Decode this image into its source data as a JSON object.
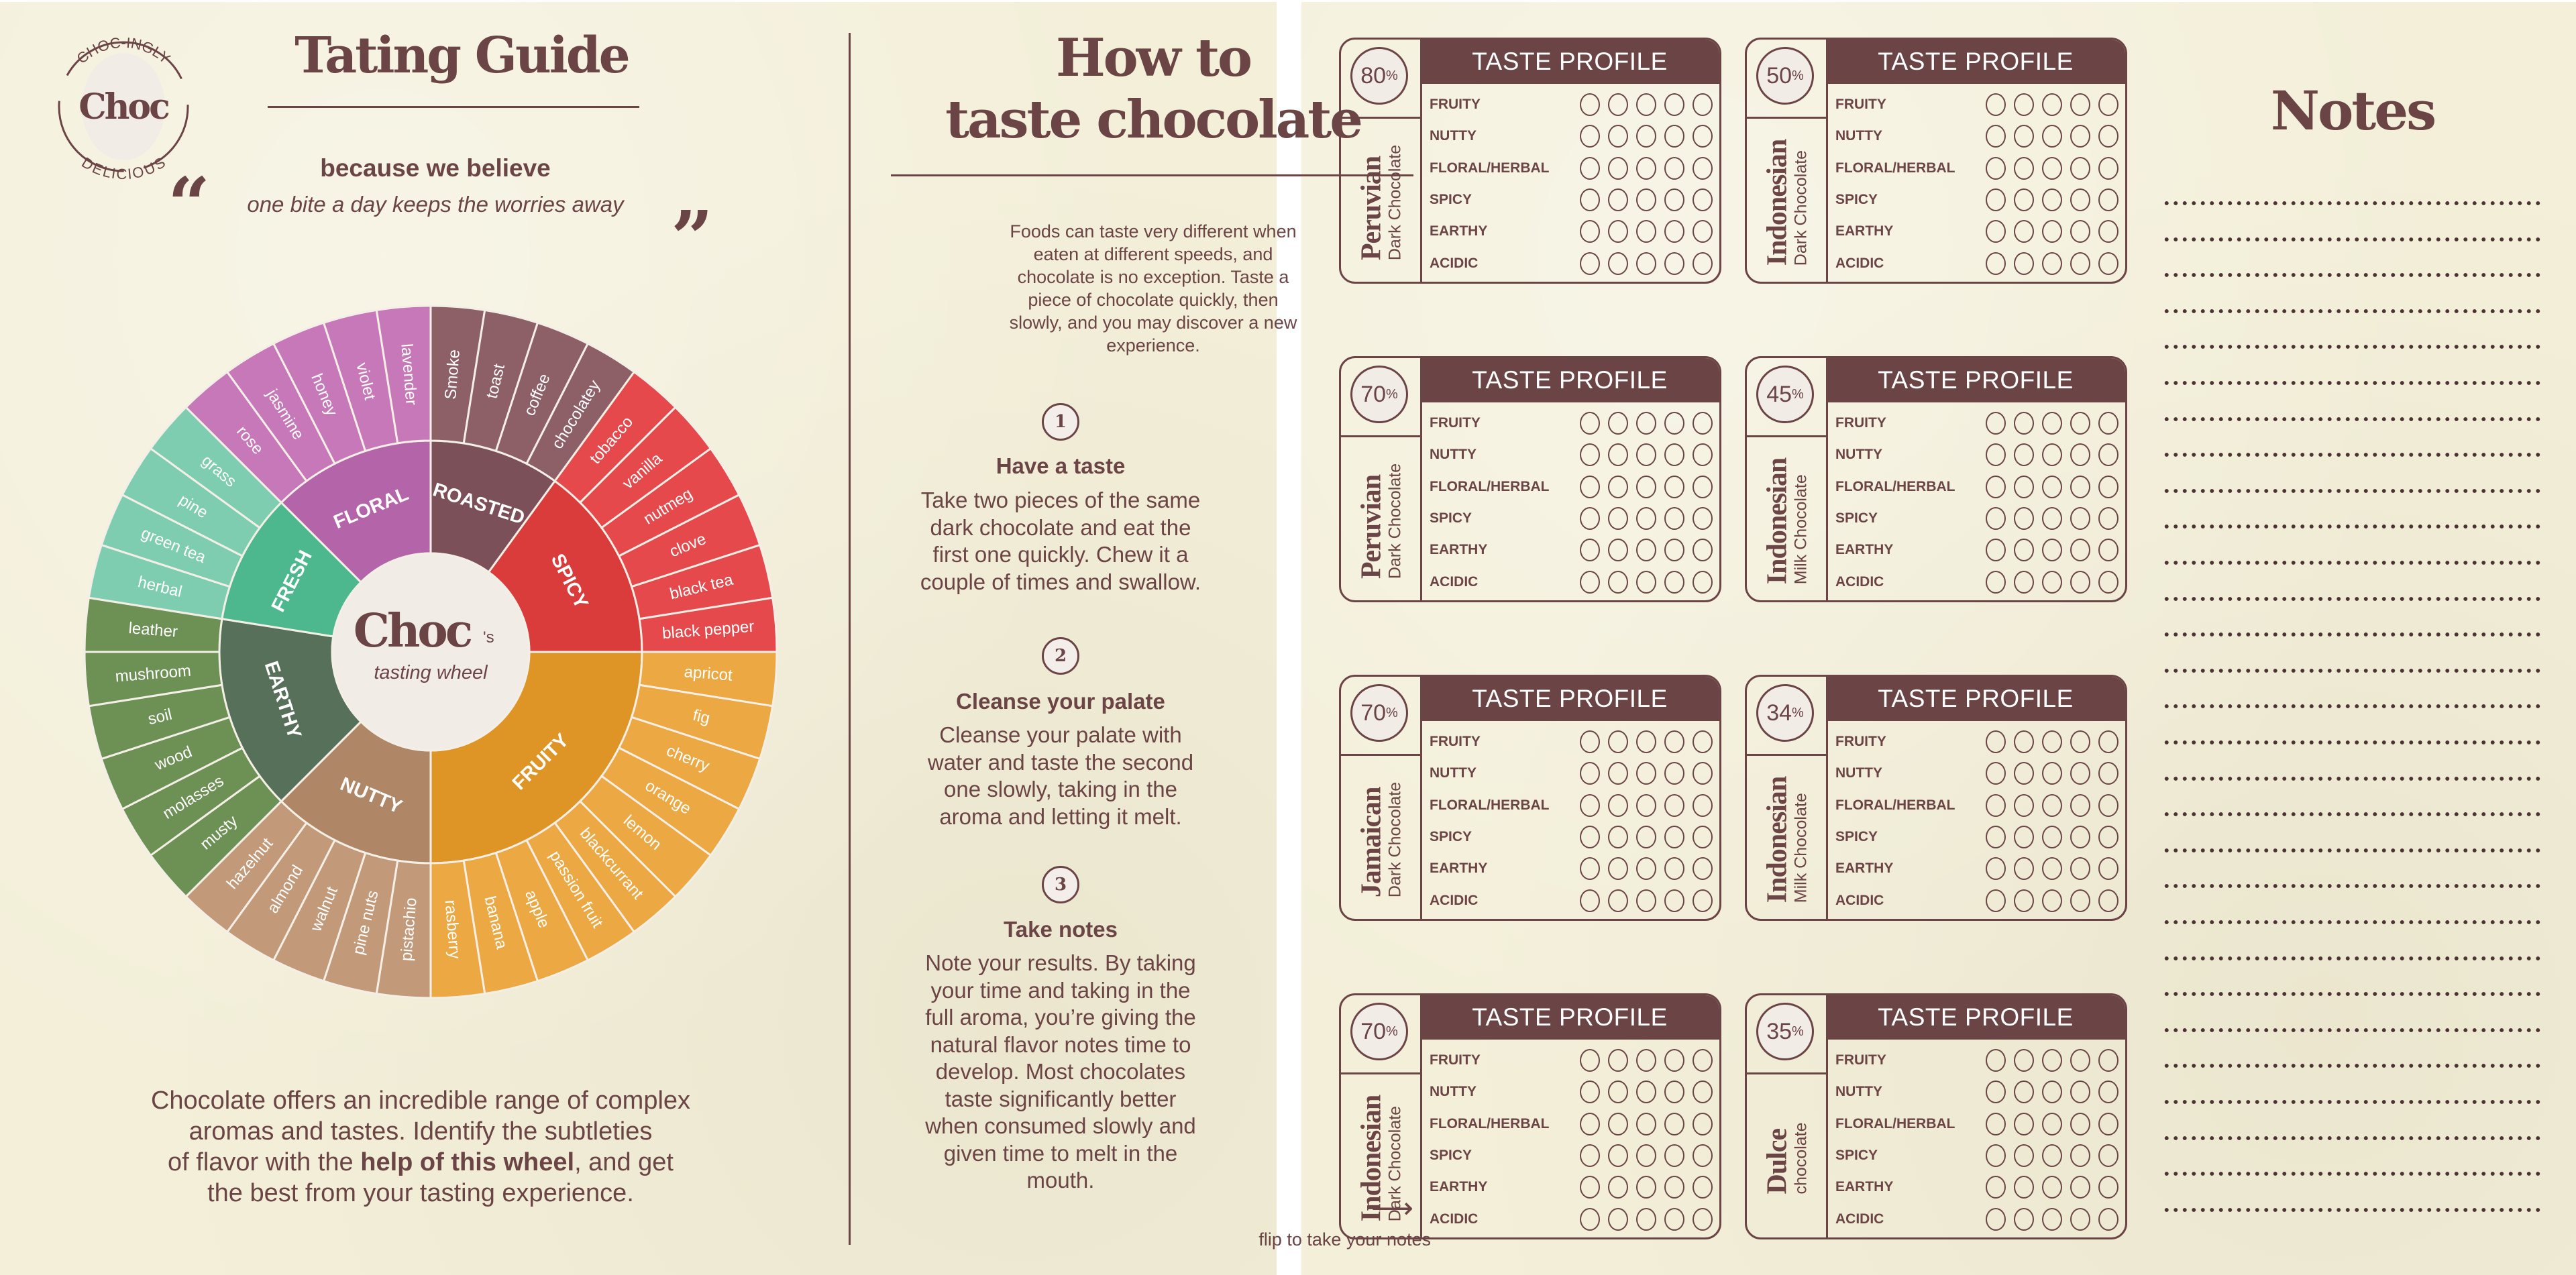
{
  "logo": {
    "wordmark": "Choc",
    "ring_top": "CHOC-INGLY",
    "ring_bottom": "DELICIOUS"
  },
  "guide": {
    "title": "Tating Guide",
    "tagline": "because we believe",
    "quote": "one bite a day keeps the worries away",
    "open_quote": "“",
    "close_quote": "”",
    "description_lines": [
      [
        "Chocolate offers an incredible range of complex",
        "",
        ""
      ],
      [
        "aromas and tastes. Identify the subtleties",
        "",
        ""
      ],
      [
        "of flavor with the ",
        "help of this wheel",
        ", and get"
      ],
      [
        "the best from your tasting experience.",
        "",
        ""
      ]
    ]
  },
  "wheel": {
    "center_brand": "Choc",
    "center_suffix": "'s",
    "center_subtitle": "tasting wheel",
    "center_color": "#f2ece7",
    "categories": [
      {
        "name": "ROASTED",
        "inner_color": "#7b5058",
        "outer_color": "#8d5f67",
        "leaves": [
          "Smoke",
          "toast",
          "coffee",
          "chocolatey"
        ]
      },
      {
        "name": "SPICY",
        "inner_color": "#d93c3b",
        "outer_color": "#e6494b",
        "leaves": [
          "tobacco",
          "vanilla",
          "nutmeg",
          "clove",
          "black tea",
          "black pepper"
        ]
      },
      {
        "name": "FRUITY",
        "inner_color": "#de9526",
        "outer_color": "#eca843",
        "leaves": [
          "apricot",
          "fig",
          "cherry",
          "orange",
          "lemon",
          "blackcurrant",
          "passion fruit",
          "apple",
          "banana",
          "rasberry"
        ]
      },
      {
        "name": "NUTTY",
        "inner_color": "#b08766",
        "outer_color": "#c29a7a",
        "leaves": [
          "pistachio",
          "pine nuts",
          "walnut",
          "almond",
          "hazelnut"
        ]
      },
      {
        "name": "EARTHY",
        "inner_color": "#57705a",
        "outer_color": "#6d9055",
        "leaves": [
          "musty",
          "molasses",
          "wood",
          "soil",
          "mushroom",
          "leather"
        ]
      },
      {
        "name": "FRESH",
        "inner_color": "#4db78e",
        "outer_color": "#7fcdb1",
        "leaves": [
          "herbal",
          "green tea",
          "pine",
          "grass"
        ]
      },
      {
        "name": "FLORAL",
        "inner_color": "#b464a8",
        "outer_color": "#c678b8",
        "leaves": [
          "rose",
          "jasmine",
          "honey",
          "violet",
          "lavender"
        ]
      }
    ]
  },
  "howto": {
    "title_line1": "How to",
    "title_line2": "taste chocolate",
    "intro_lines": [
      "Foods can taste very different when",
      "eaten at different speeds, and",
      "chocolate is no exception. Taste a",
      "piece of chocolate quickly, then",
      "slowly, and you may discover a new",
      "experience."
    ],
    "steps": [
      {
        "number": "1",
        "title": "Have a taste",
        "lines": [
          "Take two pieces of the same",
          "dark chocolate and eat the",
          "first one quickly. Chew it a",
          "couple of times and swallow."
        ]
      },
      {
        "number": "2",
        "title": "Cleanse your palate",
        "lines": [
          "Cleanse your palate with",
          "water and taste the second",
          "one slowly, taking in the",
          "aroma and letting it melt."
        ]
      },
      {
        "number": "3",
        "title": "Take notes",
        "lines": [
          "Note your results. By taking",
          "your time and taking in the",
          "full aroma, you’re giving the",
          "natural flavor notes time to",
          "develop. Most chocolates",
          "taste significantly better",
          "when consumed slowly and",
          "given time to melt in the",
          "mouth."
        ]
      }
    ],
    "flip_text": "flip to take your notes",
    "flip_arrow": "⟶"
  },
  "profile": {
    "header": "TASTE PROFILE",
    "attributes": [
      "FRUITY",
      "NUTTY",
      "FLORAL/HERBAL",
      "SPICY",
      "EARTHY",
      "ACIDIC"
    ],
    "scale_max": 5,
    "cards": [
      {
        "percent": "80",
        "origin": "Peruvian",
        "type": "Dark Chocolate"
      },
      {
        "percent": "50",
        "origin": "Indonesian",
        "type": "Dark Chocolate"
      },
      {
        "percent": "70",
        "origin": "Peruvian",
        "type": "Dark Chocolate"
      },
      {
        "percent": "45",
        "origin": "Indonesian",
        "type": "Milk Chocolate"
      },
      {
        "percent": "70",
        "origin": "Jamaican",
        "type": "Dark Chocolate"
      },
      {
        "percent": "34",
        "origin": "Indonesian",
        "type": "Milk Chocolate"
      },
      {
        "percent": "70",
        "origin": "Indonesian",
        "type": "Dark Chocolate"
      },
      {
        "percent": "35",
        "origin": "Dulce",
        "type": "chocolate"
      }
    ],
    "percent_sign": "%"
  },
  "notes": {
    "title": "Notes",
    "line_count": 29
  }
}
